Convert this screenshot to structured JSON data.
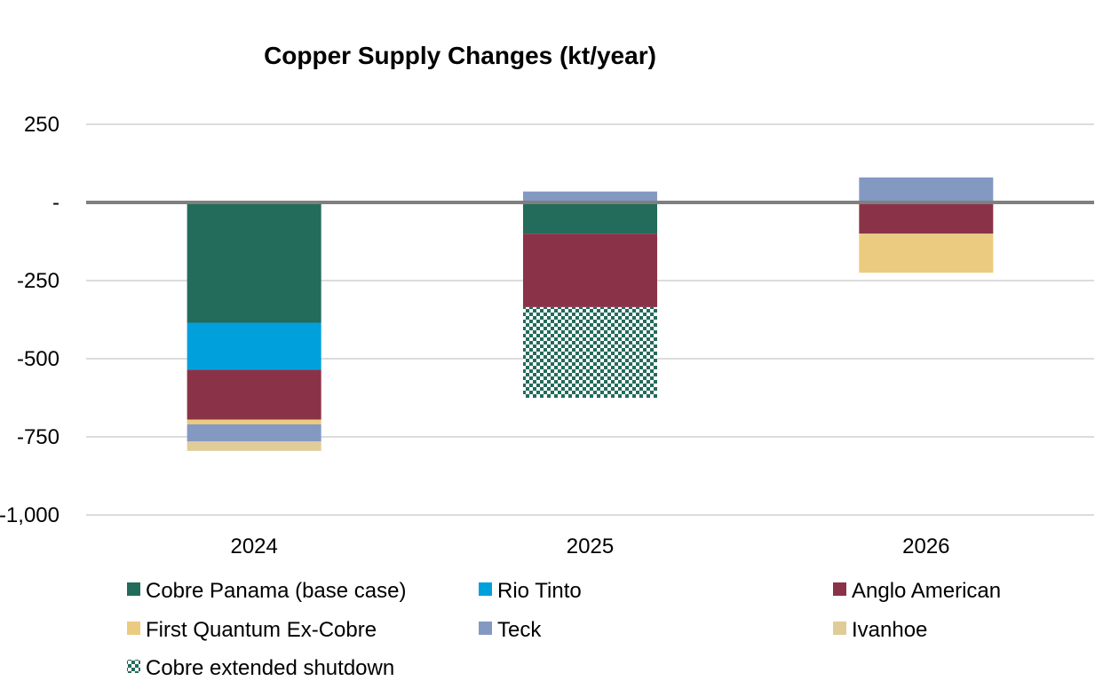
{
  "chart_data": {
    "type": "bar",
    "stacked": true,
    "title": "Copper Supply Changes (kt/year)",
    "xlabel": "",
    "ylabel": "",
    "categories": [
      "2024",
      "2025",
      "2026"
    ],
    "ylim": [
      -1000,
      250
    ],
    "yticks": [
      {
        "value": 250,
        "label": "250"
      },
      {
        "value": 0,
        "label": "-"
      },
      {
        "value": -250,
        "label": "-250"
      },
      {
        "value": -500,
        "label": "-500"
      },
      {
        "value": -750,
        "label": "-750"
      },
      {
        "value": -1000,
        "label": "-1,000"
      }
    ],
    "series": [
      {
        "name": "Cobre Panama (base case)",
        "color": "#236b5b",
        "pattern": "solid",
        "values": [
          -385,
          -100,
          0
        ]
      },
      {
        "name": "Rio Tinto",
        "color": "#00a0dc",
        "pattern": "solid",
        "values": [
          -150,
          0,
          0
        ]
      },
      {
        "name": "Anglo American",
        "color": "#8a3348",
        "pattern": "solid",
        "values": [
          -160,
          -235,
          -100
        ]
      },
      {
        "name": "First Quantum Ex-Cobre",
        "color": "#ebcb7f",
        "pattern": "solid",
        "values": [
          -15,
          0,
          -125
        ]
      },
      {
        "name": "Teck",
        "color": "#8499c2",
        "pattern": "solid",
        "values": [
          -55,
          35,
          80
        ]
      },
      {
        "name": "Ivanhoe",
        "color": "#e0cc98",
        "pattern": "solid",
        "values": [
          -30,
          0,
          0
        ]
      },
      {
        "name": "Cobre extended shutdown",
        "color": "#236b5b",
        "pattern": "checker",
        "values": [
          0,
          -290,
          0
        ]
      }
    ],
    "legend_position": "bottom",
    "grid": true
  }
}
